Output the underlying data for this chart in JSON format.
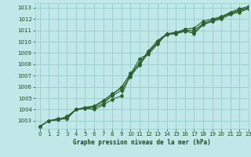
{
  "title": "Graphe pression niveau de la mer (hPa)",
  "bg_color": "#c0e8e8",
  "grid_color": "#98cccc",
  "line_color": "#2d612d",
  "text_color": "#1a4a1a",
  "xlim": [
    -0.5,
    23
  ],
  "ylim": [
    1002.3,
    1013.4
  ],
  "yticks": [
    1003,
    1004,
    1005,
    1006,
    1007,
    1008,
    1009,
    1010,
    1011,
    1012,
    1013
  ],
  "xticks": [
    0,
    1,
    2,
    3,
    4,
    5,
    6,
    7,
    8,
    9,
    10,
    11,
    12,
    13,
    14,
    15,
    16,
    17,
    18,
    19,
    20,
    21,
    22,
    23
  ],
  "series": [
    [
      1002.5,
      1003.0,
      1003.2,
      1003.2,
      1004.0,
      1004.1,
      1004.0,
      1004.4,
      1004.9,
      1005.2,
      1007.1,
      1008.5,
      1008.9,
      1009.8,
      1010.7,
      1010.8,
      1011.0,
      1010.7,
      1011.5,
      1011.8,
      1012.0,
      1012.4,
      1012.6,
      1012.9
    ],
    [
      1002.5,
      1003.0,
      1003.1,
      1003.3,
      1004.0,
      1004.1,
      1004.2,
      1004.5,
      1005.3,
      1006.0,
      1007.1,
      1007.9,
      1009.1,
      1009.9,
      1010.7,
      1010.7,
      1011.0,
      1011.0,
      1011.6,
      1011.9,
      1012.1,
      1012.5,
      1012.7,
      1013.0
    ],
    [
      1002.5,
      1003.0,
      1003.1,
      1003.4,
      1004.0,
      1004.2,
      1004.3,
      1004.8,
      1005.4,
      1005.9,
      1007.2,
      1008.1,
      1009.2,
      1010.1,
      1010.7,
      1010.8,
      1011.1,
      1011.2,
      1011.8,
      1012.0,
      1012.2,
      1012.6,
      1012.9,
      1013.1
    ],
    [
      1002.5,
      1003.0,
      1003.1,
      1003.2,
      1004.0,
      1004.1,
      1004.3,
      1004.7,
      1005.2,
      1005.7,
      1006.9,
      1008.0,
      1009.0,
      1010.0,
      1010.6,
      1010.7,
      1010.9,
      1010.8,
      1011.5,
      1011.8,
      1012.2,
      1012.5,
      1012.8,
      1013.0
    ]
  ],
  "marker": "*",
  "markersize": 3,
  "linewidth": 0.8,
  "label_fontsize": 5,
  "xlabel_fontsize": 5.5
}
